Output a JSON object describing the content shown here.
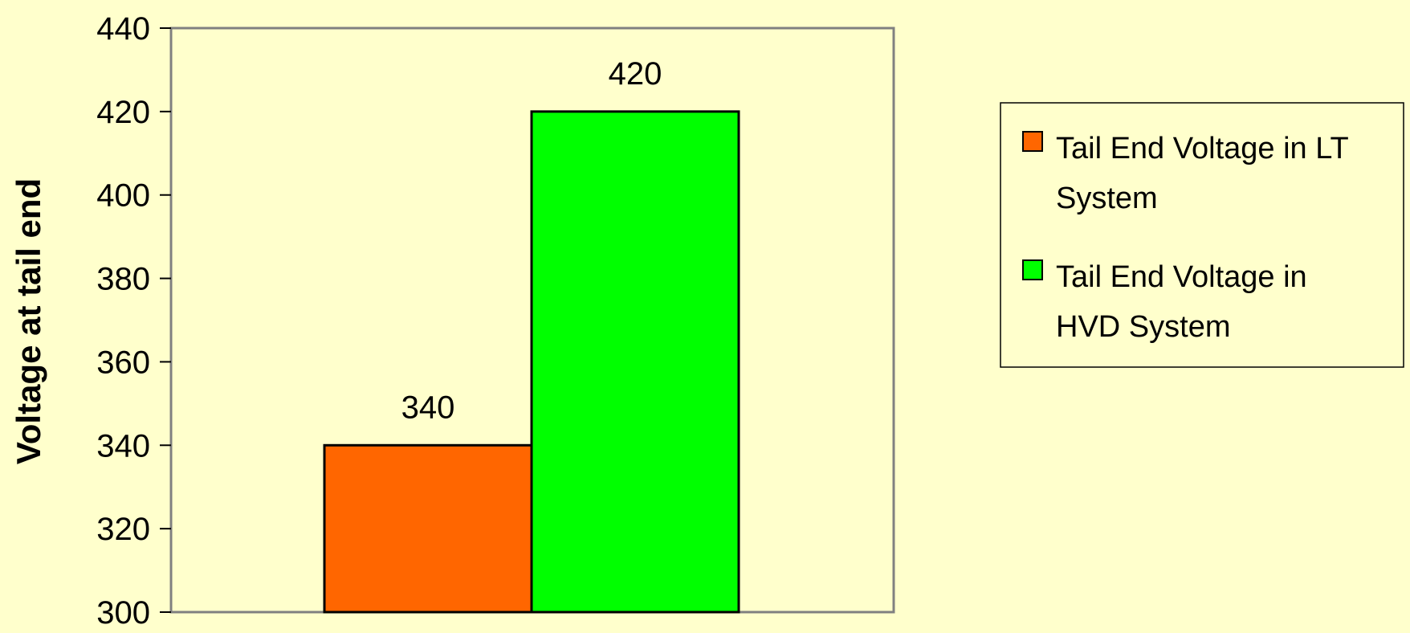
{
  "chart_data": {
    "type": "bar",
    "ylabel": "Voltage at tail end",
    "ylim": [
      300,
      440
    ],
    "ytick_step": 20,
    "grid": false,
    "legend_position": "right",
    "series": [
      {
        "name": [
          "Tail End Voltage in LT",
          "System"
        ],
        "value": 340,
        "color": "#ff6600"
      },
      {
        "name": [
          "Tail End Voltage in",
          "HVD System"
        ],
        "value": 420,
        "color": "#00ff00"
      }
    ]
  },
  "colors": {
    "background": "#ffffcc",
    "plot_border": "#808080",
    "bar_stroke": "#000000"
  }
}
